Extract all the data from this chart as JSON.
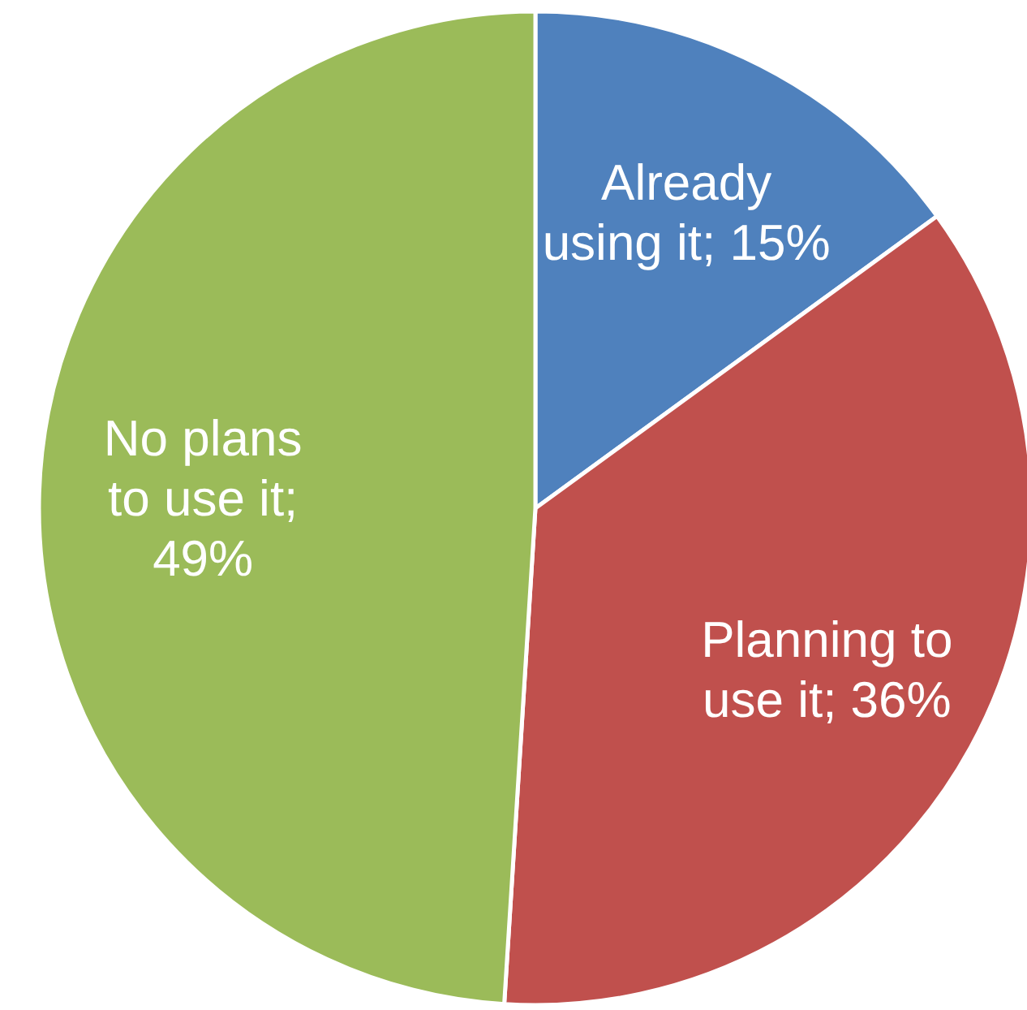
{
  "chart_data": {
    "type": "pie",
    "categories": [
      "Already using it",
      "Planning to use it",
      "No plans to use it"
    ],
    "values": [
      15,
      36,
      49
    ],
    "colors": [
      "#4f81bd",
      "#c0504d",
      "#9bbb59"
    ],
    "value_labels": [
      "; 15%",
      "; 36%",
      "; 49%"
    ]
  }
}
